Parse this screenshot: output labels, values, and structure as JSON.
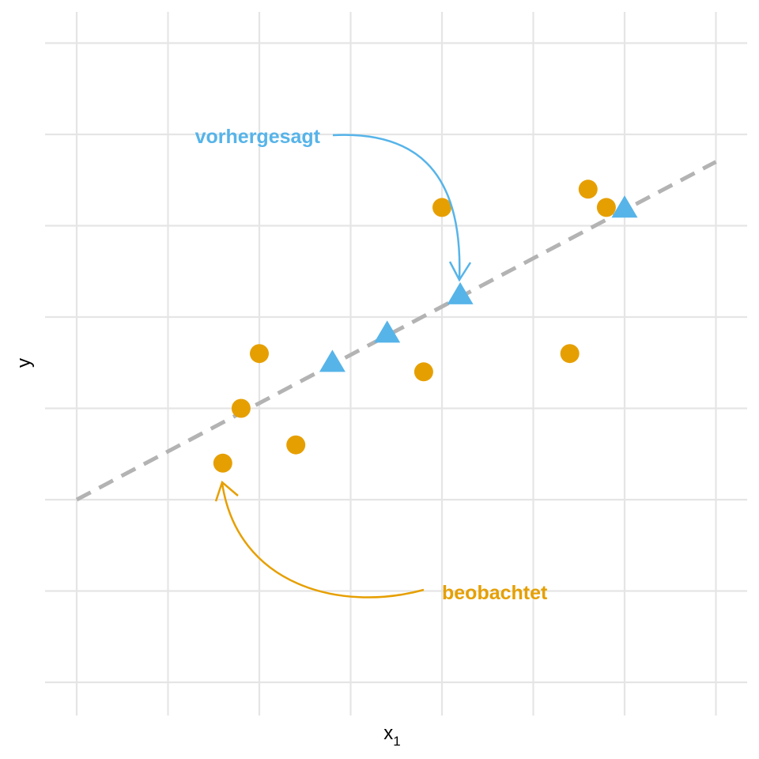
{
  "chart_data": {
    "type": "scatter",
    "xlabel": "x",
    "xlabel_subscript": "1",
    "ylabel": "y",
    "xlim": [
      0,
      7
    ],
    "ylim": [
      0,
      7
    ],
    "grid": true,
    "tick_labels_shown": false,
    "colors": {
      "observed": "#E69F00",
      "predicted": "#56B4E9",
      "line": "#b3b3b3",
      "grid": "#e5e5e5"
    },
    "regression_line": {
      "style": "dashed",
      "x": [
        0,
        7
      ],
      "y": [
        2.0,
        5.7
      ]
    },
    "series": [
      {
        "key": "observed",
        "marker": "circle",
        "points": [
          [
            1.6,
            2.4
          ],
          [
            1.8,
            3.0
          ],
          [
            2.0,
            3.6
          ],
          [
            2.4,
            2.6
          ],
          [
            3.8,
            3.4
          ],
          [
            4.0,
            5.2
          ],
          [
            5.4,
            3.6
          ],
          [
            5.6,
            5.4
          ],
          [
            5.8,
            5.2
          ]
        ]
      },
      {
        "key": "predicted",
        "marker": "triangle",
        "points": [
          [
            2.8,
            3.48
          ],
          [
            3.4,
            3.8
          ],
          [
            4.2,
            4.22
          ],
          [
            6.0,
            5.17
          ]
        ]
      }
    ],
    "annotations": [
      {
        "key": "predicted",
        "text": "vorhergesagt"
      },
      {
        "key": "observed",
        "text": "beobachtet"
      }
    ]
  }
}
